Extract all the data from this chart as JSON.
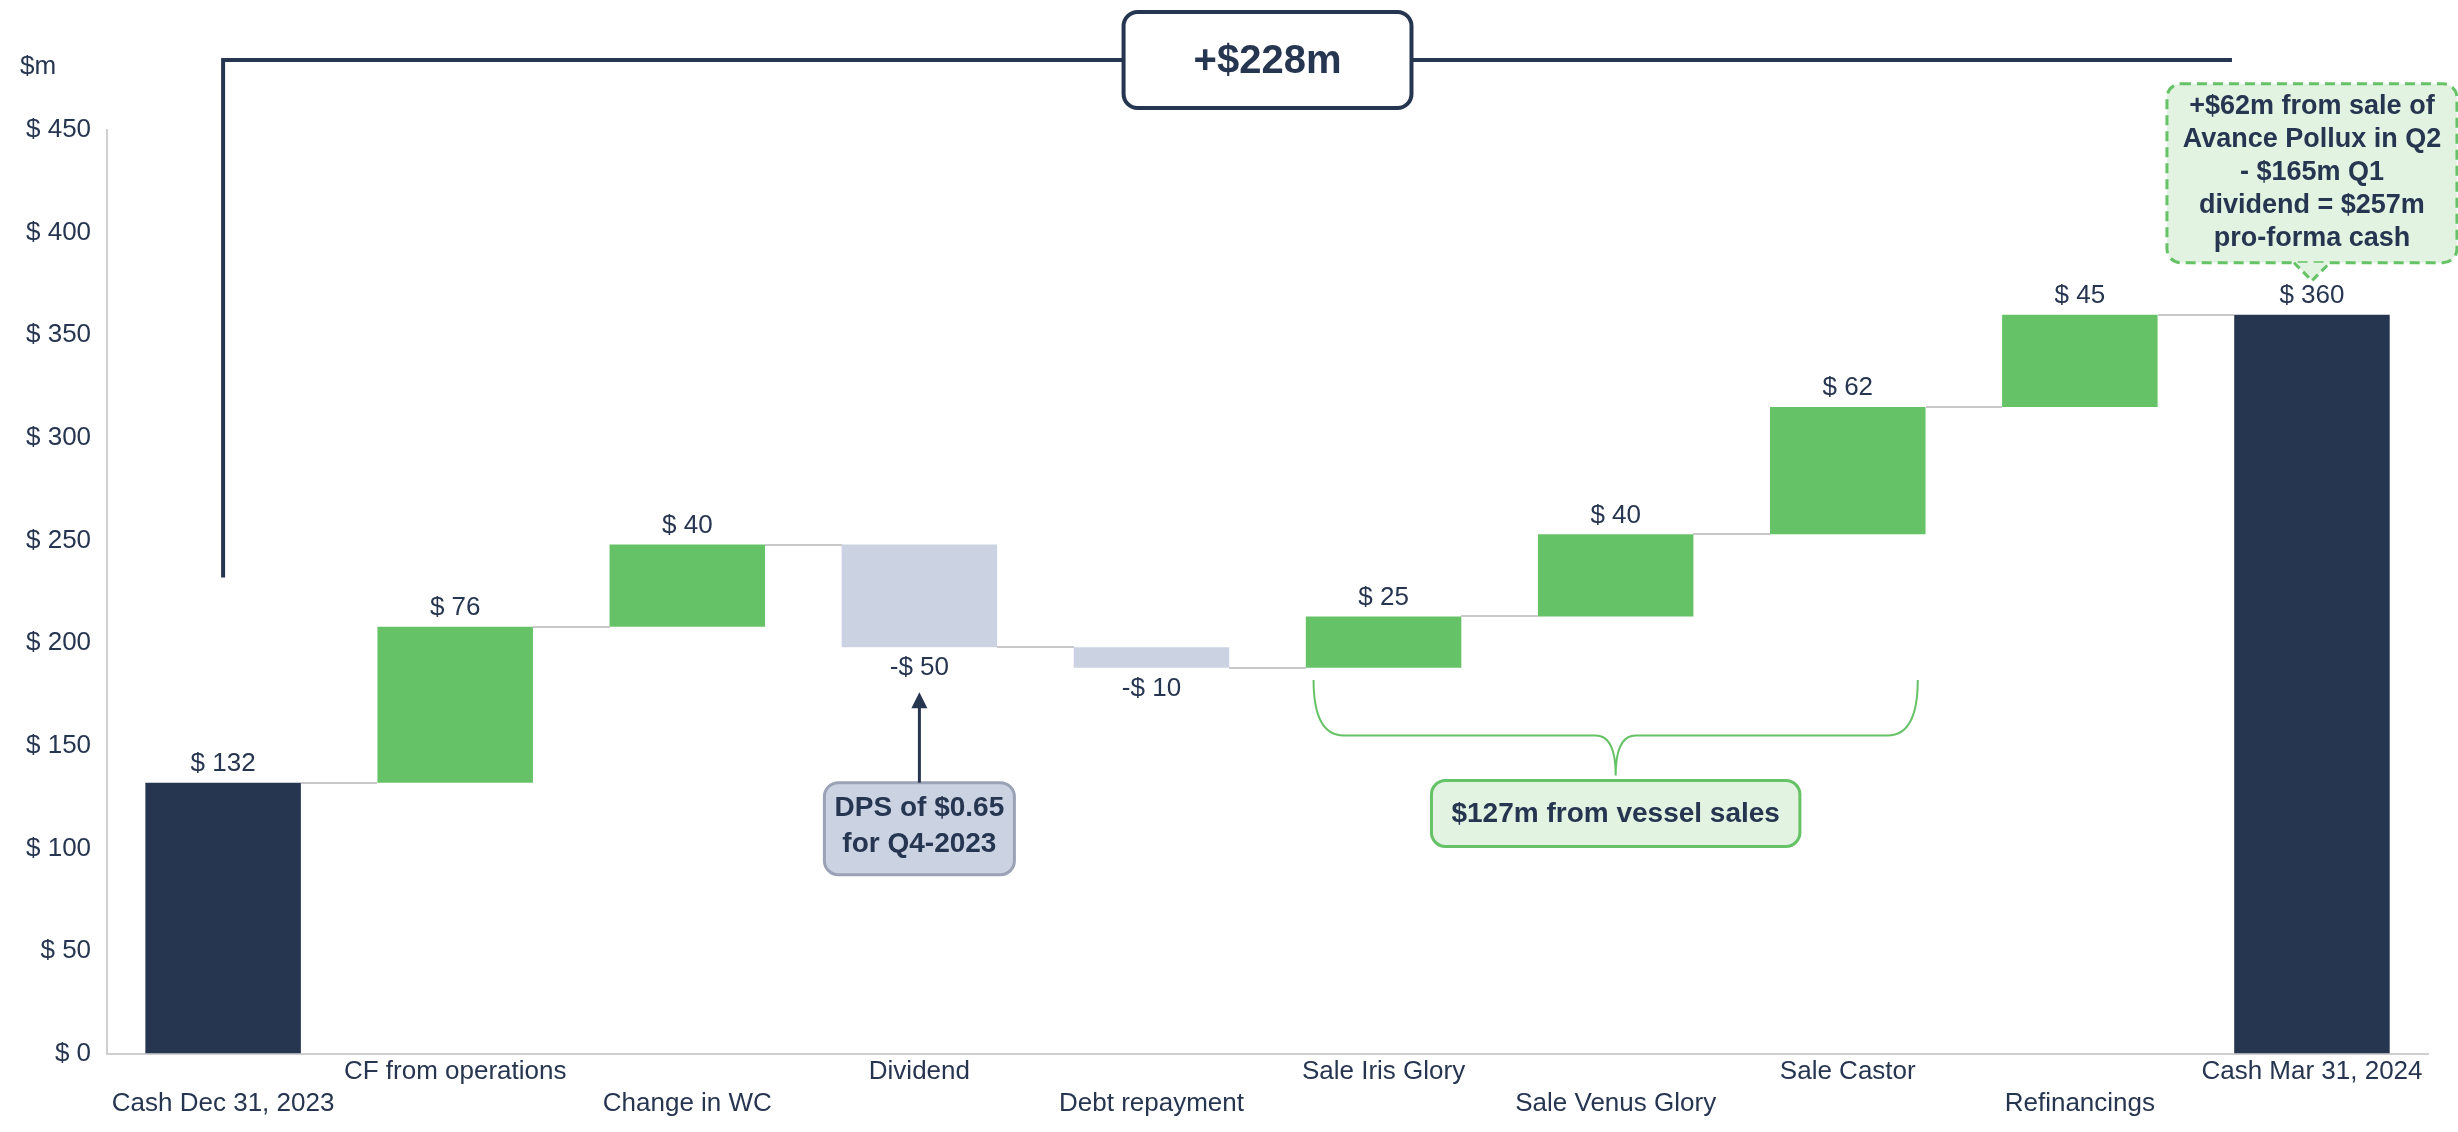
{
  "chart_data": {
    "type": "bar",
    "ylabel": "$m",
    "categories": [
      "Cash Dec 31, 2023",
      "CF from operations",
      "Change in WC",
      "Dividend",
      "Debt repayment",
      "Sale Iris Glory",
      "Sale Venus Glory",
      "Sale Castor",
      "Refinancings",
      "Cash Mar 31, 2024"
    ],
    "values": [
      132,
      76,
      40,
      -50,
      -10,
      25,
      40,
      62,
      45,
      360
    ],
    "base": [
      0,
      132,
      208,
      248,
      198,
      188,
      213,
      253,
      315,
      0
    ],
    "colors": [
      "#263550",
      "#66c266",
      "#66c266",
      "#cbd3e3",
      "#cbd3e3",
      "#66c266",
      "#66c266",
      "#66c266",
      "#66c266",
      "#263550"
    ],
    "value_labels": [
      "$ 132",
      "$ 76",
      "$ 40",
      "-$ 50",
      "-$ 10",
      "$ 25",
      "$ 40",
      "$ 62",
      "$ 45",
      "$ 360"
    ],
    "ylim": [
      0,
      450
    ],
    "yticks": [
      {
        "value": 0,
        "label": "$ 0"
      },
      {
        "value": 50,
        "label": "$ 50"
      },
      {
        "value": 100,
        "label": "$ 100"
      },
      {
        "value": 150,
        "label": "$ 150"
      },
      {
        "value": 200,
        "label": "$ 200"
      },
      {
        "value": 250,
        "label": "$ 250"
      },
      {
        "value": 300,
        "label": "$ 300"
      },
      {
        "value": 350,
        "label": "$ 350"
      },
      {
        "value": 400,
        "label": "$ 400"
      },
      {
        "value": 450,
        "label": "$ 450"
      }
    ],
    "grid": false,
    "annotations": [
      "+$228m",
      "DPS of $0.65 for Q4-2023",
      "$127m from vessel sales",
      "+$62m from sale of Avance Pollux in Q2 - $165m Q1 dividend = $257m pro-forma cash"
    ]
  }
}
